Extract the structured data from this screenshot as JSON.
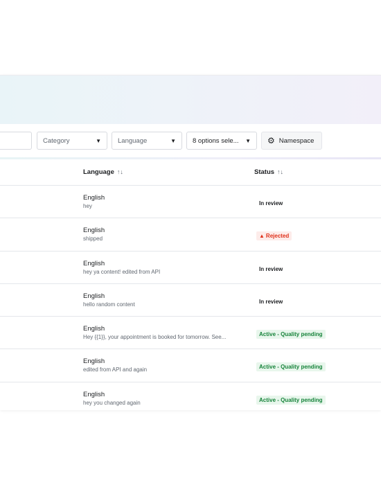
{
  "filters": {
    "search_value": "",
    "category_label": "Category",
    "language_label": "Language",
    "status_options_label": "8 options sele...",
    "namespace_label": "Namespace"
  },
  "table": {
    "columns": [
      {
        "label": "Language",
        "sort_icon": "↑↓"
      },
      {
        "label": "Status",
        "sort_icon": "↑↓"
      }
    ],
    "rows": [
      {
        "language": "English",
        "content": "hey",
        "status": "In review",
        "status_type": "review"
      },
      {
        "language": "English",
        "content": "shipped",
        "status": "Rejected",
        "status_type": "rejected"
      },
      {
        "language": "English",
        "content": "hey ya content! edited from API",
        "status": "In review",
        "status_type": "review"
      },
      {
        "language": "English",
        "content": "hello random content",
        "status": "In review",
        "status_type": "review"
      },
      {
        "language": "English",
        "content": "Hey {{1}}, your appointment is booked for tomorrow. See...",
        "status": "Active - Quality pending",
        "status_type": "active"
      },
      {
        "language": "English",
        "content": "edited from API and again",
        "status": "Active - Quality pending",
        "status_type": "active"
      },
      {
        "language": "English",
        "content": "hey you changed again",
        "status": "Active - Quality pending",
        "status_type": "active"
      }
    ]
  },
  "colors": {
    "rejected": "#e0311b",
    "active": "#16833a",
    "text": "#1c1e21"
  },
  "icons": {
    "caret": "caret-down-icon",
    "gear": "gear-icon",
    "warning": "warning-triangle-icon",
    "sort": "sort-arrows-icon"
  }
}
